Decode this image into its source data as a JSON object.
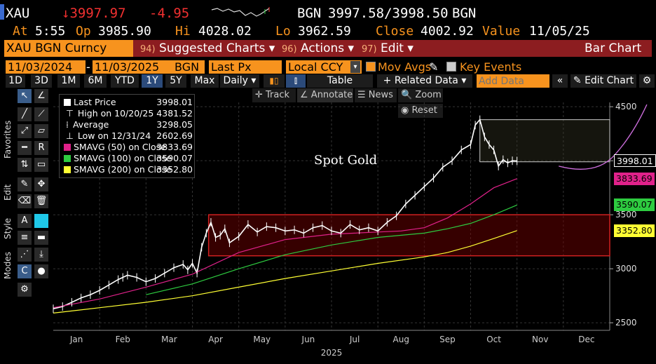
{
  "quote": {
    "ticker": "XAU",
    "last": "↓3997.97",
    "change": "-4.95",
    "bid_src": "BGN",
    "bid_ask": "3997.58/3998.50",
    "ask_src": "BGN"
  },
  "detail": {
    "at_label": "At",
    "at": "5:55",
    "op_label": "Op",
    "op": "3985.90",
    "hi_label": "Hi",
    "hi": "4028.02",
    "lo_label": "Lo",
    "lo": "3962.59",
    "close_label": "Close",
    "close": "4002.92",
    "value_label": "Value",
    "value": "11/05/25"
  },
  "toolbar": {
    "security": "XAU BGN Curncy",
    "suggested": {
      "num": "94)",
      "label": "Suggested Charts ▾"
    },
    "actions": {
      "num": "96)",
      "label": "Actions ▾"
    },
    "edit": {
      "num": "97)",
      "label": "Edit ▾"
    },
    "view": "Bar Chart"
  },
  "params": {
    "start": "11/03/2024",
    "end": "11/03/2025",
    "source": "BGN",
    "field": "Last Px",
    "ccy": "Local CCY",
    "mov_avgs": "Mov Avgs",
    "key_events": "Key Events"
  },
  "periods": {
    "items": [
      "1D",
      "3D",
      "1M",
      "6M",
      "YTD",
      "1Y",
      "5Y",
      "Max"
    ],
    "selected": "1Y",
    "freq": "Daily ▾",
    "table": "Table",
    "related": "+ Related Data ▾",
    "add_placeholder": "Add Data",
    "edit_chart": "Edit Chart"
  },
  "side_labels": [
    "Favorites",
    "Edit",
    "Style",
    "Modes"
  ],
  "chart_tools": {
    "track": "Track",
    "annotate": "Annotate",
    "news": "News",
    "zoom": "Zoom",
    "reset": "Reset"
  },
  "legend": [
    {
      "label": "Last Price",
      "value": "3998.01",
      "color": "#ffffff"
    },
    {
      "label": "High on 10/20/25",
      "value": "4381.52",
      "color": ""
    },
    {
      "label": "Average",
      "value": "3298.05",
      "color": ""
    },
    {
      "label": "Low on 12/31/24",
      "value": "2602.69",
      "color": ""
    },
    {
      "label": "SMAVG (50)  on Close",
      "value": "3833.69",
      "color": "#e0218a"
    },
    {
      "label": "SMAVG (100)  on Close",
      "value": "3590.07",
      "color": "#2ecc40"
    },
    {
      "label": "SMAVG (200)  on Close",
      "value": "3352.80",
      "color": "#ffff33"
    }
  ],
  "chart_data": {
    "type": "line",
    "title": "Spot Gold",
    "x_months": [
      "Jan",
      "Feb",
      "Mar",
      "Apr",
      "May",
      "Jun",
      "Jul",
      "Aug",
      "Sep",
      "Oct",
      "Nov",
      "Dec"
    ],
    "year_label": "2025",
    "y_ticks": [
      2500,
      3000,
      3500,
      4000,
      4500
    ],
    "ylim": [
      2430,
      4540
    ],
    "series": [
      {
        "name": "Last Price",
        "color": "#ffffff",
        "x": [
          0,
          0.2,
          0.4,
          0.6,
          0.8,
          1.0,
          1.2,
          1.4,
          1.5,
          1.6,
          1.8,
          2.0,
          2.2,
          2.4,
          2.6,
          2.8,
          2.9,
          3.0,
          3.1,
          3.2,
          3.3,
          3.4,
          3.5,
          3.6,
          3.7,
          3.8,
          4.0,
          4.2,
          4.4,
          4.6,
          4.8,
          5.0,
          5.2,
          5.4,
          5.6,
          5.8,
          6.0,
          6.2,
          6.4,
          6.6,
          6.8,
          7.0,
          7.2,
          7.4,
          7.6,
          7.8,
          8.0,
          8.2,
          8.4,
          8.6,
          8.8,
          9.0,
          9.1,
          9.2,
          9.3,
          9.4,
          9.5,
          9.6,
          9.7,
          9.8,
          9.9,
          10.0
        ],
        "values": [
          2630,
          2650,
          2690,
          2730,
          2760,
          2800,
          2850,
          2900,
          2920,
          2940,
          2920,
          2880,
          2910,
          2960,
          3010,
          3040,
          2990,
          3050,
          2960,
          3200,
          3330,
          3430,
          3290,
          3310,
          3370,
          3240,
          3300,
          3410,
          3340,
          3390,
          3380,
          3350,
          3360,
          3330,
          3380,
          3400,
          3350,
          3330,
          3410,
          3360,
          3380,
          3350,
          3430,
          3490,
          3600,
          3680,
          3760,
          3840,
          3940,
          4000,
          4100,
          4150,
          4330,
          4380,
          4220,
          4150,
          4100,
          3950,
          4010,
          3980,
          4000,
          3998
        ]
      },
      {
        "name": "SMAVG (50)",
        "color": "#e0218a",
        "x": [
          0,
          1,
          2,
          3,
          4,
          5,
          6,
          7,
          7.5,
          8,
          8.5,
          9,
          9.5,
          10
        ],
        "values": [
          2640,
          2720,
          2830,
          2950,
          3150,
          3270,
          3320,
          3340,
          3350,
          3380,
          3470,
          3600,
          3750,
          3834
        ]
      },
      {
        "name": "SMAVG (100)",
        "color": "#2ecc40",
        "x": [
          2,
          3,
          4,
          5,
          6,
          7,
          8,
          8.5,
          9,
          9.5,
          10
        ],
        "values": [
          2760,
          2860,
          3000,
          3130,
          3220,
          3290,
          3330,
          3370,
          3420,
          3500,
          3590
        ]
      },
      {
        "name": "SMAVG (200)",
        "color": "#ffff33",
        "x": [
          0,
          1,
          2,
          3,
          4,
          5,
          6,
          7,
          8,
          8.5,
          9,
          9.5,
          10
        ],
        "values": [
          2590,
          2640,
          2690,
          2750,
          2830,
          2910,
          2980,
          3050,
          3110,
          3150,
          3210,
          3280,
          3353
        ]
      }
    ],
    "annotations": {
      "red_box": {
        "x": [
          3.35,
          12
        ],
        "y": [
          3120,
          3500
        ]
      },
      "top_box": {
        "x": [
          9.2,
          12
        ],
        "y": [
          3990,
          4380
        ]
      }
    },
    "badges": [
      {
        "value": "3998.01",
        "y": 3998,
        "bg": "#000000",
        "fg": "#ffffff",
        "border": "#ffffff"
      },
      {
        "value": "3833.69",
        "y": 3834,
        "bg": "#e0218a",
        "fg": "#000000",
        "border": ""
      },
      {
        "value": "3590.07",
        "y": 3590,
        "bg": "#2ecc40",
        "fg": "#000000",
        "border": ""
      },
      {
        "value": "3352.80",
        "y": 3353,
        "bg": "#ffff33",
        "fg": "#000000",
        "border": ""
      }
    ]
  }
}
